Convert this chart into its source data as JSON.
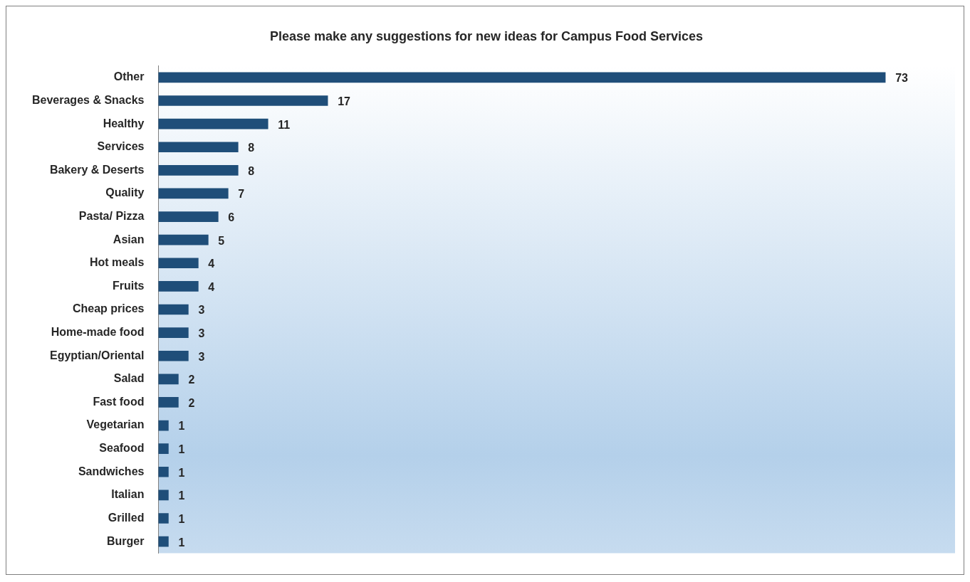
{
  "chart_data": {
    "type": "bar",
    "orientation": "horizontal",
    "title": "Please make any suggestions for new ideas for Campus Food Services",
    "categories": [
      "Other",
      "Beverages & Snacks",
      "Healthy",
      "Services",
      "Bakery & Deserts",
      "Quality",
      "Pasta/ Pizza",
      "Asian",
      "Hot meals",
      "Fruits",
      "Cheap prices",
      "Home-made food",
      "Egyptian/Oriental",
      "Salad",
      "Fast food",
      "Vegetarian",
      "Seafood",
      "Sandwiches",
      "Italian",
      "Grilled",
      "Burger"
    ],
    "values": [
      73,
      17,
      11,
      8,
      8,
      7,
      6,
      5,
      4,
      4,
      3,
      3,
      3,
      2,
      2,
      1,
      1,
      1,
      1,
      1,
      1
    ],
    "color": "#1f4e79",
    "data_labels": true,
    "grid": false,
    "legend": false
  }
}
